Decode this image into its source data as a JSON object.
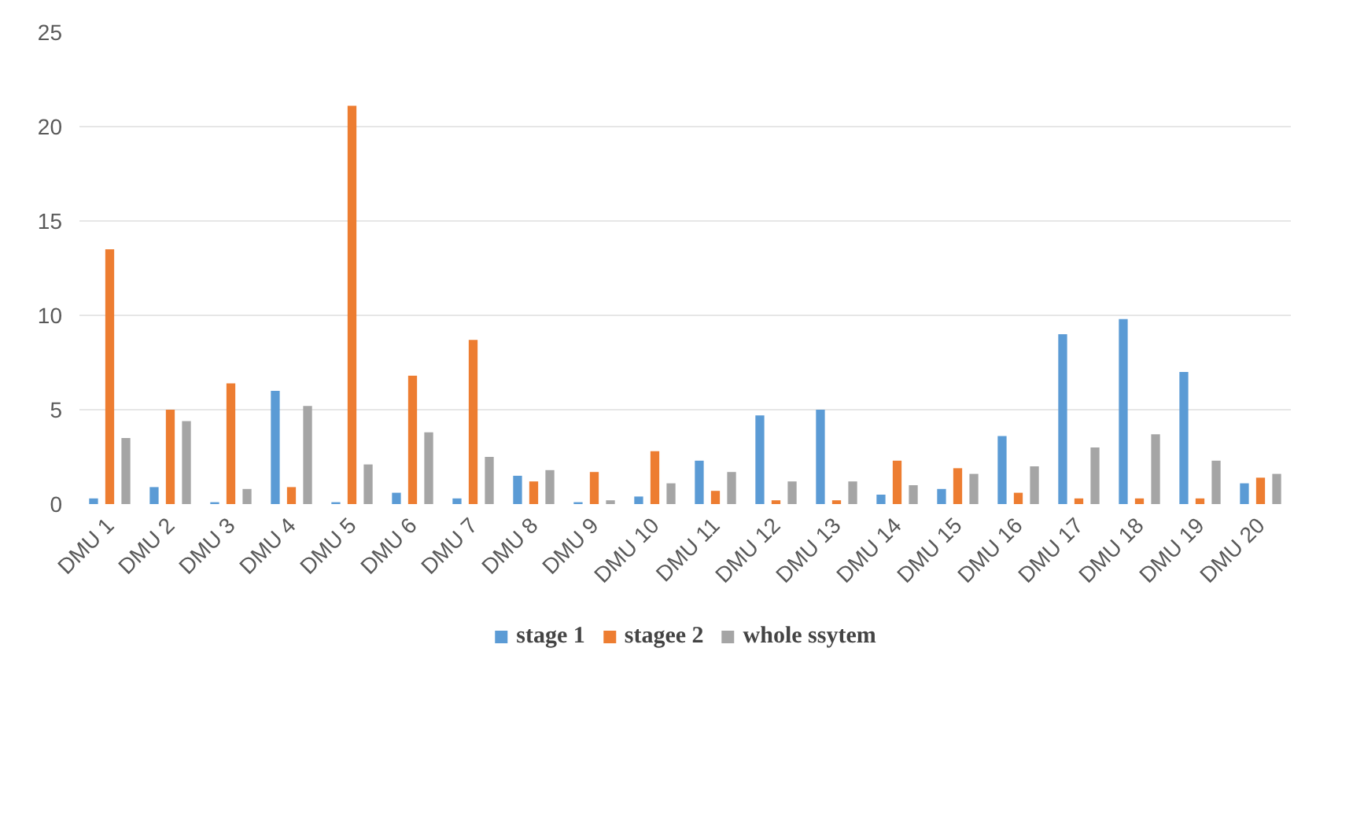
{
  "chart_data": {
    "type": "bar",
    "categories": [
      "DMU 1",
      "DMU 2",
      "DMU 3",
      "DMU 4",
      "DMU 5",
      "DMU 6",
      "DMU 7",
      "DMU 8",
      "DMU 9",
      "DMU 10",
      "DMU 11",
      "DMU 12",
      "DMU 13",
      "DMU 14",
      "DMU 15",
      "DMU 16",
      "DMU 17",
      "DMU 18",
      "DMU 19",
      "DMU 20"
    ],
    "series": [
      {
        "name": "stage 1",
        "color": "#5b9bd5",
        "values": [
          0.3,
          0.9,
          0.1,
          6.0,
          0.1,
          0.6,
          0.3,
          1.5,
          0.1,
          0.4,
          2.3,
          4.7,
          5.0,
          0.5,
          0.8,
          3.6,
          9.0,
          9.8,
          7.0,
          1.1
        ]
      },
      {
        "name": "stagee 2",
        "color": "#ed7d31",
        "values": [
          13.5,
          5.0,
          6.4,
          0.9,
          21.1,
          6.8,
          8.7,
          1.2,
          1.7,
          2.8,
          0.7,
          0.2,
          0.2,
          2.3,
          1.9,
          0.6,
          0.3,
          0.3,
          0.3,
          1.4
        ]
      },
      {
        "name": "whole ssytem",
        "color": "#a5a5a5",
        "values": [
          3.5,
          4.4,
          0.8,
          5.2,
          2.1,
          3.8,
          2.5,
          1.8,
          0.2,
          1.1,
          1.7,
          1.2,
          1.2,
          1.0,
          1.6,
          2.0,
          3.0,
          3.7,
          2.3,
          1.6
        ]
      }
    ],
    "ylim": [
      0,
      25
    ],
    "yticks": [
      0,
      5,
      10,
      15,
      20,
      25
    ],
    "grid": "y",
    "legend": "bottom"
  }
}
